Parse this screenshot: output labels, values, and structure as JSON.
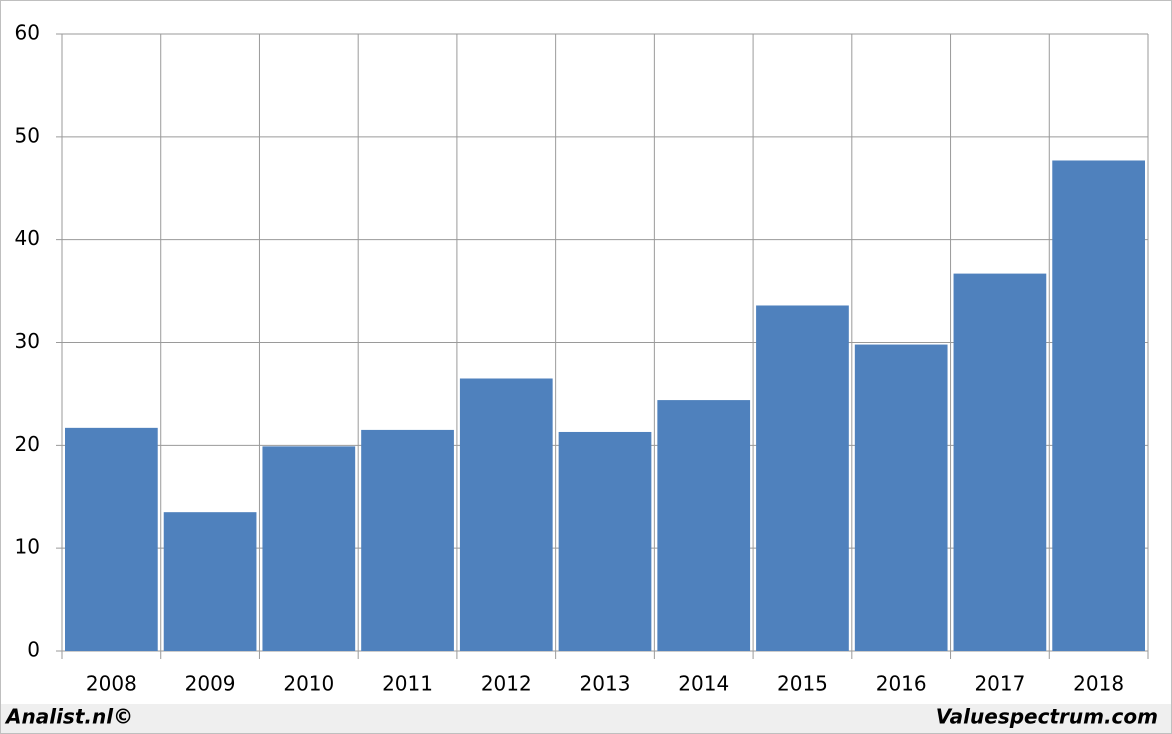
{
  "chart_data": {
    "type": "bar",
    "categories": [
      "2008",
      "2009",
      "2010",
      "2011",
      "2012",
      "2013",
      "2014",
      "2015",
      "2016",
      "2017",
      "2018"
    ],
    "values": [
      21.7,
      13.5,
      19.9,
      21.5,
      26.5,
      21.3,
      24.4,
      33.6,
      29.8,
      36.7,
      47.7
    ],
    "color": "#4f81bd",
    "ylim": [
      0,
      60
    ],
    "yticks": [
      0,
      10,
      20,
      30,
      40,
      50,
      60
    ],
    "grid": true,
    "source_left": "Analist.nl©",
    "source_right": "Valuespectrum.com"
  }
}
